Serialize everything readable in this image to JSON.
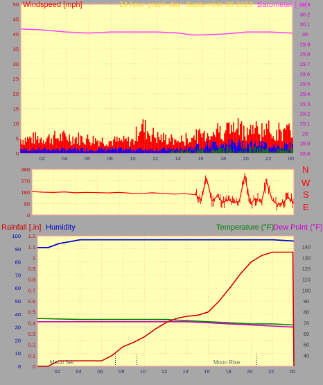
{
  "header": {
    "left_label": "Windspeed [mph]",
    "center_label": "24 hour graph day",
    "date_label": "September 06 2022",
    "right_label": "Barometer [ in]"
  },
  "colors": {
    "background": "#a7a7a7",
    "plot_bg": "#ffffb7",
    "grid": "#ff9a9a",
    "wind_axis": "#ff0000",
    "baro": "#ff40ff",
    "wind_gust": "#ff0000",
    "wind_avg": "#0000ff",
    "wind_low": "#008000",
    "direction": "#ff0000",
    "humidity": "#0000cc",
    "rain": "#cc0000",
    "temperature": "#008000",
    "dewpoint": "#cc00cc",
    "header_yellow": "#f3df3a"
  },
  "compass": {
    "n": "N",
    "w": "W",
    "s": "S",
    "e": "E"
  },
  "lower_labels": {
    "rain": "Rainfall [.in]",
    "humidity": "Humidity",
    "temperature": "Temperature (°F)",
    "dewpoint": "Dew Point (°F)",
    "moon_set": "Moon Set",
    "moon_rise": "Moon Rise"
  },
  "chart_data": [
    {
      "type": "line",
      "name": "wind-baro",
      "x_ticks": [
        "02",
        "04",
        "06",
        "08",
        "10",
        "12",
        "14",
        "16",
        "18",
        "20",
        "22",
        "00"
      ],
      "y_left": {
        "ylim": [
          0,
          50
        ],
        "ticks": [
          "0",
          "5",
          "10",
          "15",
          "20",
          "25",
          "30",
          "35",
          "40",
          "45",
          "50"
        ]
      },
      "y_right": {
        "ylim": [
          28.8,
          30.3
        ],
        "ticks": [
          "28.8",
          "28.9",
          "29",
          "29.1",
          "29.2",
          "29.3",
          "29.4",
          "29.5",
          "29.6",
          "29.7",
          "29.8",
          "29.9",
          "30",
          "30.1",
          "30.2",
          "30.3"
        ]
      },
      "barometer": {
        "x": [
          0,
          2,
          4,
          6,
          8,
          10,
          12,
          14,
          15,
          16,
          18,
          20,
          22,
          24
        ],
        "y": [
          30.05,
          30.04,
          30.02,
          30.01,
          30.02,
          30.02,
          30.02,
          30.01,
          29.99,
          29.99,
          30.0,
          30.02,
          30.02,
          30.01
        ]
      },
      "gust_range": {
        "x": [
          0,
          4,
          8,
          10,
          10.5,
          12,
          14,
          16,
          18,
          20,
          22,
          24
        ],
        "y": [
          7,
          8,
          6,
          6,
          14,
          8,
          6,
          9,
          12,
          12,
          11,
          10
        ]
      },
      "avg_range": {
        "x": [
          0,
          4,
          8,
          10,
          12,
          14,
          16,
          18,
          20,
          22,
          24
        ],
        "y": [
          2,
          2,
          2,
          2,
          2,
          2,
          4,
          5,
          5,
          4,
          4
        ]
      }
    },
    {
      "type": "scatter",
      "name": "wind-direction",
      "y_ticks": [
        "0",
        "90",
        "180",
        "270",
        "360"
      ],
      "ylim": [
        0,
        360
      ],
      "x": [
        0,
        1,
        2,
        3,
        4,
        5,
        6,
        7,
        8,
        9,
        10,
        11,
        12,
        13,
        14,
        15,
        15.5,
        16,
        16.5,
        17,
        17.5,
        18,
        18.5,
        19,
        19.5,
        20,
        20.5,
        21,
        21.5,
        22,
        22.5,
        23,
        23.5,
        24
      ],
      "y": [
        185,
        180,
        178,
        182,
        175,
        178,
        176,
        174,
        178,
        172,
        168,
        175,
        170,
        165,
        168,
        160,
        120,
        290,
        110,
        150,
        100,
        120,
        95,
        110,
        310,
        90,
        130,
        100,
        260,
        120,
        80,
        100,
        140,
        90
      ]
    },
    {
      "type": "line",
      "name": "rain-humidity-temp",
      "x_ticks": [
        "02",
        "04",
        "06",
        "08",
        "10",
        "12",
        "14",
        "16",
        "18",
        "20",
        "22",
        "00"
      ],
      "y_left": {
        "ylim": [
          0,
          100
        ],
        "ticks": [
          "0",
          "10",
          "20",
          "30",
          "40",
          "50",
          "60",
          "70",
          "80",
          "90",
          "100"
        ]
      },
      "y_rain": {
        "ylim": [
          0,
          1.2
        ],
        "ticks": [
          "0",
          "0.1",
          "0.2",
          "0.3",
          "0.4",
          "0.5",
          "0.6",
          "0.7",
          "0.8",
          "0.9",
          "1",
          "1.1",
          "1.2"
        ]
      },
      "y_right": {
        "ylim": [
          30,
          150
        ],
        "ticks": [
          "40",
          "50",
          "60",
          "70",
          "80",
          "90",
          "100",
          "110",
          "120",
          "130",
          "140"
        ]
      },
      "humidity": {
        "x": [
          0,
          1,
          2,
          4,
          8,
          12,
          16,
          20,
          22,
          24
        ],
        "y": [
          91,
          91,
          94,
          97,
          97,
          97,
          97,
          97,
          97,
          96
        ]
      },
      "rainfall": {
        "x": [
          0,
          1,
          2,
          4,
          6,
          7,
          8,
          9,
          10,
          11,
          12,
          13,
          14,
          15,
          16,
          17,
          18,
          19,
          20,
          21,
          22,
          23,
          23.9,
          24
        ],
        "y": [
          0.0,
          0.0,
          0.05,
          0.05,
          0.05,
          0.1,
          0.18,
          0.22,
          0.27,
          0.34,
          0.4,
          0.44,
          0.46,
          0.47,
          0.5,
          0.6,
          0.72,
          0.85,
          0.96,
          1.02,
          1.05,
          1.05,
          1.05,
          0.0
        ]
      },
      "temperature": {
        "x": [
          0,
          4,
          8,
          12,
          14,
          16,
          18,
          20,
          22,
          24
        ],
        "y": [
          74,
          73,
          73,
          73,
          72,
          71,
          70,
          69,
          69,
          68
        ]
      },
      "dewpoint": {
        "x": [
          0,
          4,
          8,
          12,
          14,
          16,
          18,
          20,
          22,
          24
        ],
        "y": [
          71,
          71,
          71,
          71,
          71,
          70,
          69,
          68,
          67,
          66
        ]
      },
      "moon_set_x": 7.3,
      "moon_rise_x": 20.5
    }
  ]
}
